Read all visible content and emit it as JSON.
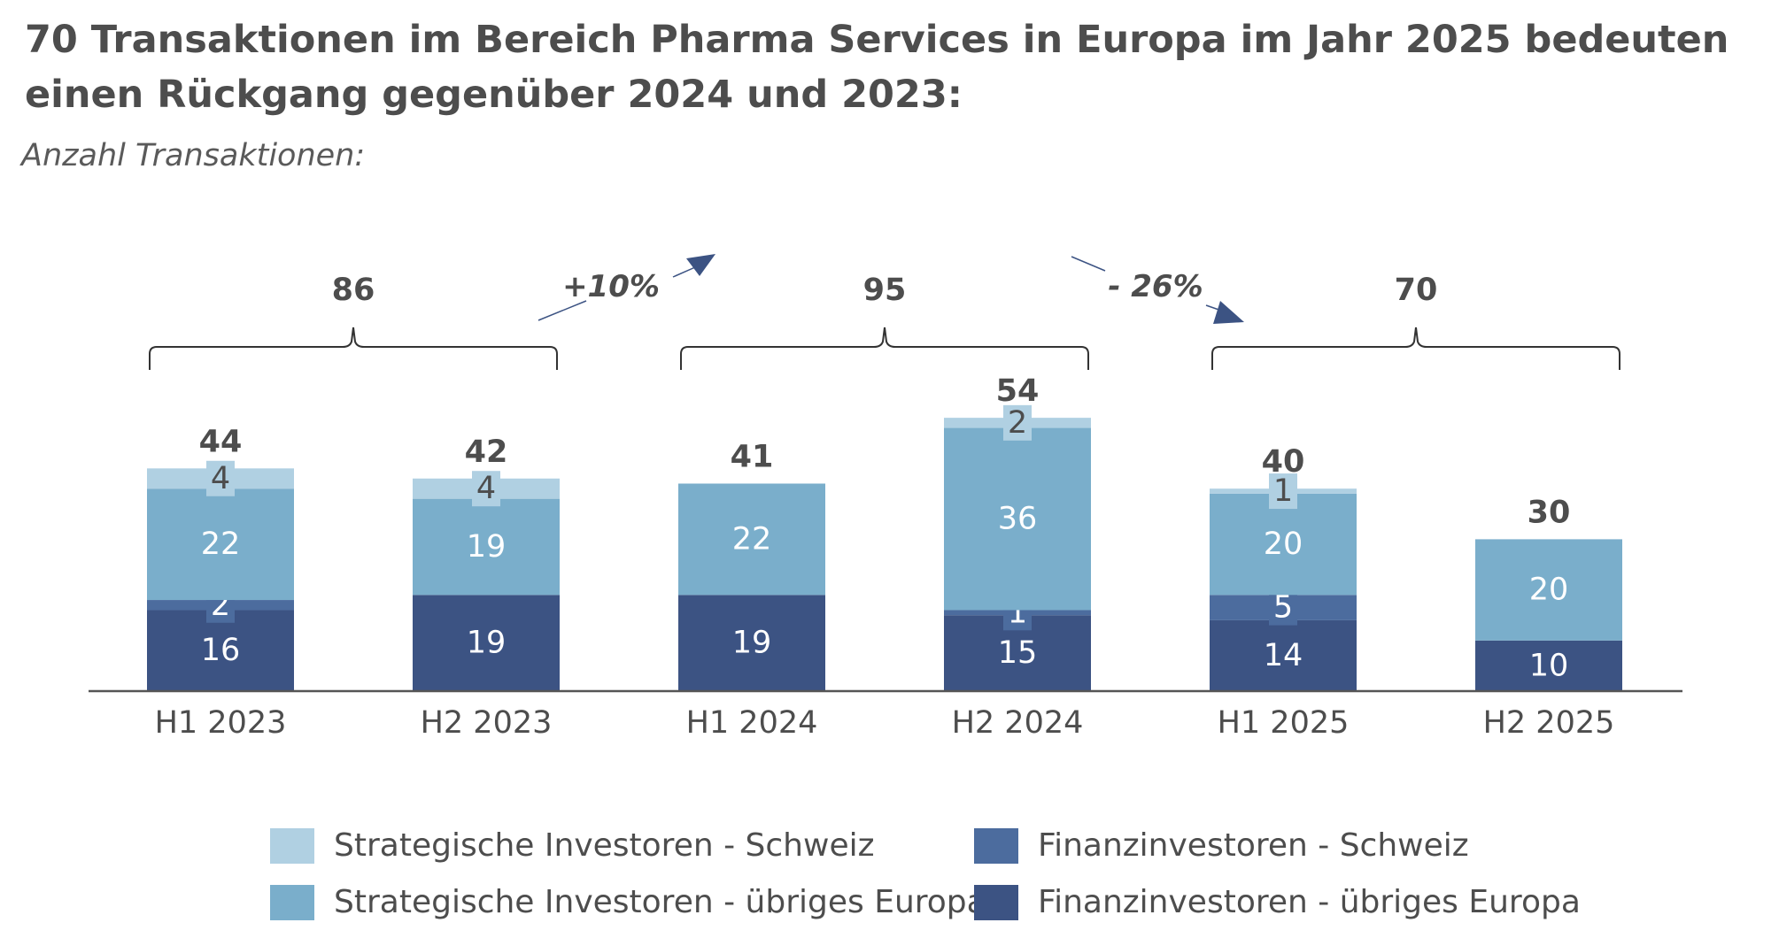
{
  "title": "70 Transaktionen im Bereich Pharma Services in Europa im Jahr 2025 bedeuten einen Rückgang gegenüber 2024 und 2023:",
  "subtitle": "Anzahl Transaktionen:",
  "colors": {
    "finanz_europa": "#3c5383",
    "finanz_schweiz": "#4c6c9e",
    "strat_europa": "#7aaecb",
    "strat_schweiz": "#b0d0e2",
    "axis": "#555555",
    "label_dark": "#4d4d4d",
    "arrow": "#3c5383"
  },
  "chart_data": {
    "type": "bar",
    "stacked": true,
    "categories": [
      "H1 2023",
      "H2 2023",
      "H1 2024",
      "H2 2024",
      "H1 2025",
      "H2 2025"
    ],
    "series": [
      {
        "name": "Finanzinvestoren - übriges Europa",
        "key": "finanz_europa",
        "values": [
          16,
          19,
          19,
          15,
          14,
          10
        ]
      },
      {
        "name": "Finanzinvestoren - Schweiz",
        "key": "finanz_schweiz",
        "values": [
          2,
          0,
          0,
          1,
          5,
          0
        ]
      },
      {
        "name": "Strategische Investoren - übriges Europa",
        "key": "strat_europa",
        "values": [
          22,
          19,
          22,
          36,
          20,
          20
        ]
      },
      {
        "name": "Strategische Investoren - Schweiz",
        "key": "strat_schweiz",
        "values": [
          4,
          4,
          0,
          2,
          1,
          0
        ]
      }
    ],
    "totals": [
      44,
      42,
      41,
      54,
      40,
      30
    ],
    "year_groups": [
      {
        "label": "86",
        "from": 0,
        "to": 1
      },
      {
        "label": "95",
        "from": 2,
        "to": 3
      },
      {
        "label": "70",
        "from": 4,
        "to": 5
      }
    ],
    "changes": [
      {
        "label": "+10%",
        "direction": "up"
      },
      {
        "label": "- 26%",
        "direction": "down"
      }
    ],
    "ylim": [
      0,
      60
    ]
  },
  "legend": [
    {
      "label": "Strategische Investoren - Schweiz",
      "key": "strat_schweiz"
    },
    {
      "label": "Strategische Investoren - übriges Europa",
      "key": "strat_europa"
    },
    {
      "label": "Finanzinvestoren - Schweiz",
      "key": "finanz_schweiz"
    },
    {
      "label": "Finanzinvestoren - übriges Europa",
      "key": "finanz_europa"
    }
  ]
}
